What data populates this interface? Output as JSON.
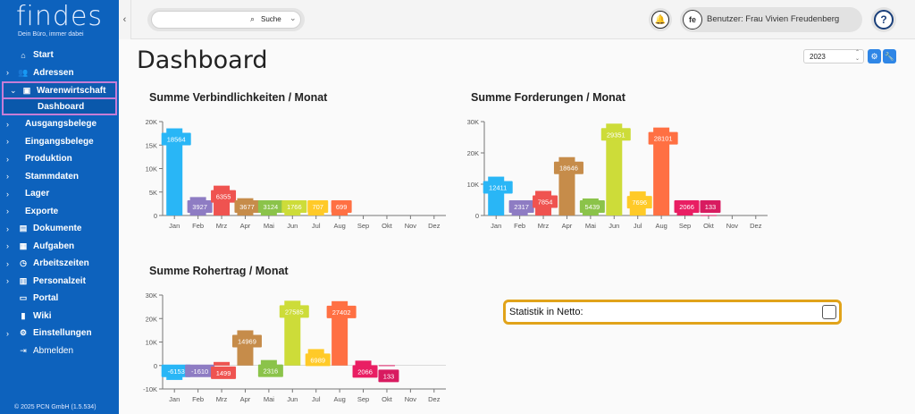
{
  "brand": {
    "name": "findes",
    "tagline": "Dein Büro, immer dabei"
  },
  "sidebar": {
    "items": [
      {
        "label": "Start",
        "icon": "home-icon",
        "glyph": "⌂",
        "chevron": false,
        "kind": "main"
      },
      {
        "label": "Adressen",
        "icon": "people-icon",
        "glyph": "👥",
        "chevron": true,
        "kind": "main"
      },
      {
        "label": "Warenwirtschaft",
        "icon": "box-icon",
        "glyph": "▣",
        "chevron": true,
        "kind": "active-group",
        "expanded": true
      },
      {
        "label": "Dashboard",
        "kind": "active-sub"
      },
      {
        "label": "Ausgangsbelege",
        "chevron": true,
        "kind": "sub"
      },
      {
        "label": "Eingangsbelege",
        "chevron": true,
        "kind": "sub"
      },
      {
        "label": "Produktion",
        "chevron": true,
        "kind": "sub"
      },
      {
        "label": "Stammdaten",
        "chevron": true,
        "kind": "sub"
      },
      {
        "label": "Lager",
        "chevron": true,
        "kind": "sub"
      },
      {
        "label": "Exporte",
        "chevron": true,
        "kind": "sub"
      },
      {
        "label": "Dokumente",
        "icon": "folder-icon",
        "glyph": "▤",
        "chevron": true,
        "kind": "main"
      },
      {
        "label": "Aufgaben",
        "icon": "calendar-icon",
        "glyph": "▦",
        "chevron": true,
        "kind": "main"
      },
      {
        "label": "Arbeitszeiten",
        "icon": "clock-icon",
        "glyph": "◷",
        "chevron": true,
        "kind": "main"
      },
      {
        "label": "Personalzeit",
        "icon": "timesheet-icon",
        "glyph": "▥",
        "chevron": true,
        "kind": "main"
      },
      {
        "label": "Portal",
        "icon": "portal-icon",
        "glyph": "▭",
        "chevron": false,
        "kind": "main"
      },
      {
        "label": "Wiki",
        "icon": "book-icon",
        "glyph": "▮",
        "chevron": false,
        "kind": "main"
      },
      {
        "label": "Einstellungen",
        "icon": "gear-icon",
        "glyph": "⚙",
        "chevron": true,
        "kind": "main"
      },
      {
        "label": "Abmelden",
        "icon": "logout-icon",
        "glyph": "⇥",
        "chevron": false,
        "kind": "plain"
      }
    ],
    "copyright": "© 2025 PCN GmbH (1.5.534)"
  },
  "topbar": {
    "search_label": "Suche",
    "search_placeholder": "",
    "user_label": "Benutzer: Frau Vivien Freudenberg",
    "avatar_text": "fe",
    "help_text": "?"
  },
  "page": {
    "title": "Dashboard",
    "year": "2023"
  },
  "netto": {
    "label": "Statistik in Netto:",
    "checked": false
  },
  "chart_data": [
    {
      "type": "bar",
      "title": "Summe Verbindlichkeiten / Monat",
      "categories": [
        "Jan",
        "Feb",
        "Mrz",
        "Apr",
        "Mai",
        "Jun",
        "Jul",
        "Aug",
        "Sep",
        "Okt",
        "Nov",
        "Dez"
      ],
      "values": [
        18564,
        3927,
        6355,
        3677,
        3124,
        1766,
        707,
        699,
        0,
        0,
        0,
        0
      ],
      "labels": [
        "18564",
        "3927",
        "6355",
        "3677",
        "3124",
        "1766",
        "707",
        "699",
        "",
        "",
        "",
        ""
      ],
      "colors": [
        "#29b6f6",
        "#8e7cc3",
        "#ef5350",
        "#c68c4a",
        "#8bc34a",
        "#cddc39",
        "#ffca28",
        "#ff7043",
        "#e91e63",
        "#d81b60",
        "#999999",
        "#999999"
      ],
      "yticks": [
        "0",
        "5K",
        "10K",
        "15K",
        "20K"
      ],
      "ylim": [
        0,
        20000
      ]
    },
    {
      "type": "bar",
      "title": "Summe Forderungen / Monat",
      "categories": [
        "Jan",
        "Feb",
        "Mrz",
        "Apr",
        "Mai",
        "Jun",
        "Jul",
        "Aug",
        "Sep",
        "Okt",
        "Nov",
        "Dez"
      ],
      "values": [
        12411,
        2317,
        7854,
        18646,
        5439,
        29351,
        7696,
        28101,
        2066,
        133,
        0,
        0
      ],
      "labels": [
        "12411",
        "2317",
        "7854",
        "18646",
        "5439",
        "29351",
        "7696",
        "28101",
        "2066",
        "133",
        "",
        ""
      ],
      "colors": [
        "#29b6f6",
        "#8e7cc3",
        "#ef5350",
        "#c68c4a",
        "#8bc34a",
        "#cddc39",
        "#ffca28",
        "#ff7043",
        "#e91e63",
        "#d81b60",
        "#999999",
        "#999999"
      ],
      "yticks": [
        "0",
        "10K",
        "20K",
        "30K"
      ],
      "ylim": [
        0,
        30000
      ]
    },
    {
      "type": "bar",
      "title": "Summe Rohertrag / Monat",
      "categories": [
        "Jan",
        "Feb",
        "Mrz",
        "Apr",
        "Mai",
        "Jun",
        "Jul",
        "Aug",
        "Sep",
        "Okt",
        "Nov",
        "Dez"
      ],
      "values": [
        -6153,
        -1610,
        1499,
        14969,
        2316,
        27585,
        6989,
        27402,
        2066,
        133,
        0,
        0
      ],
      "labels": [
        "-6153",
        "-1610",
        "1499",
        "14969",
        "2316",
        "27585",
        "6989",
        "27402",
        "2066",
        "133",
        "",
        ""
      ],
      "colors": [
        "#29b6f6",
        "#8e7cc3",
        "#ef5350",
        "#c68c4a",
        "#8bc34a",
        "#cddc39",
        "#ffca28",
        "#ff7043",
        "#e91e63",
        "#d81b60",
        "#999999",
        "#999999"
      ],
      "yticks": [
        "-10K",
        "0",
        "10K",
        "20K",
        "30K"
      ],
      "ylim": [
        -10000,
        30000
      ]
    }
  ]
}
